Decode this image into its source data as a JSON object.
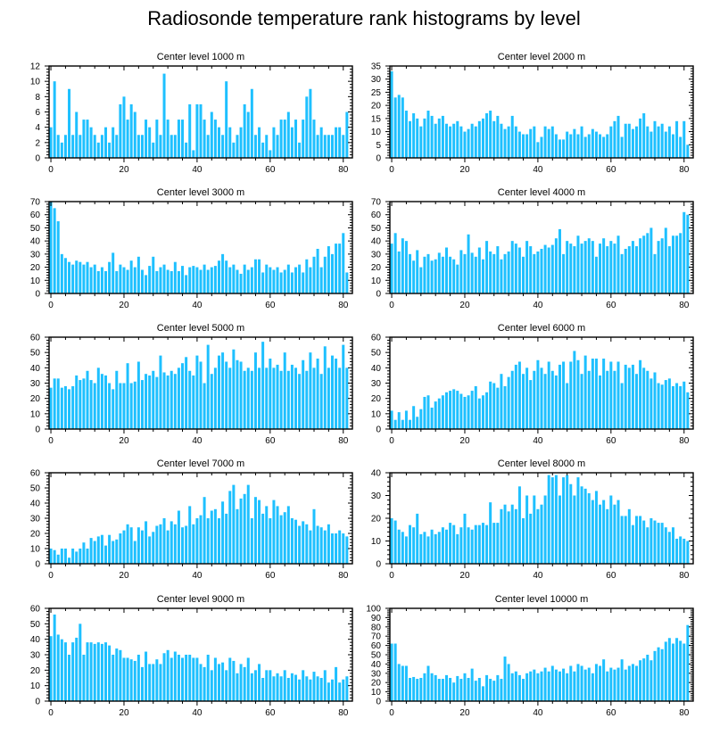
{
  "title": "Radiosonde temperature rank histograms by level",
  "colors": {
    "bar": "#1ec0ff",
    "frame": "#000000"
  },
  "chart_data": [
    {
      "type": "bar",
      "title": "Center level 1000 m",
      "xlim": [
        -0.5,
        82.5
      ],
      "xticks": [
        0,
        20,
        40,
        60,
        80
      ],
      "ylim": [
        0,
        12
      ],
      "yticks": [
        0,
        2,
        4,
        6,
        8,
        10,
        12
      ],
      "values": [
        4,
        10,
        3,
        2,
        3,
        9,
        3,
        6,
        3,
        5,
        5,
        4,
        3,
        2,
        3,
        4,
        2,
        4,
        3,
        7,
        8,
        5,
        7,
        6,
        3,
        3,
        5,
        4,
        2,
        5,
        3,
        11,
        5,
        3,
        3,
        5,
        5,
        2,
        7,
        1,
        7,
        7,
        5,
        3,
        6,
        5,
        4,
        3,
        10,
        4,
        2,
        3,
        4,
        7,
        6,
        9,
        3,
        4,
        2,
        3,
        1,
        4,
        3,
        5,
        5,
        6,
        4,
        5,
        2,
        5,
        8,
        9,
        5,
        3,
        4,
        3,
        3,
        3,
        4,
        4,
        3,
        6
      ]
    },
    {
      "type": "bar",
      "title": "Center level 2000 m",
      "xlim": [
        -0.5,
        82.5
      ],
      "xticks": [
        0,
        20,
        40,
        60,
        80
      ],
      "ylim": [
        0,
        35
      ],
      "yticks": [
        0,
        5,
        10,
        15,
        20,
        25,
        30,
        35
      ],
      "values": [
        33,
        23,
        24,
        23,
        18,
        14,
        17,
        15,
        12,
        15,
        18,
        16,
        13,
        15,
        16,
        13,
        12,
        13,
        14,
        12,
        10,
        11,
        13,
        12,
        14,
        15,
        17,
        18,
        14,
        16,
        13,
        11,
        12,
        16,
        12,
        10,
        9,
        9,
        11,
        12,
        6,
        8,
        12,
        11,
        12,
        9,
        7,
        7,
        10,
        9,
        11,
        9,
        12,
        8,
        9,
        11,
        10,
        9,
        8,
        9,
        12,
        14,
        16,
        8,
        13,
        13,
        11,
        12,
        15,
        17,
        12,
        10,
        14,
        12,
        13,
        10,
        12,
        9,
        14,
        8,
        14,
        5
      ]
    },
    {
      "type": "bar",
      "title": "Center level 3000 m",
      "xlim": [
        -0.5,
        82.5
      ],
      "xticks": [
        0,
        20,
        40,
        60,
        80
      ],
      "ylim": [
        0,
        70
      ],
      "yticks": [
        0,
        10,
        20,
        30,
        40,
        50,
        60,
        70
      ],
      "values": [
        70,
        65,
        55,
        30,
        27,
        24,
        22,
        25,
        24,
        22,
        24,
        20,
        22,
        17,
        20,
        17,
        24,
        31,
        17,
        22,
        20,
        18,
        25,
        20,
        28,
        18,
        14,
        21,
        28,
        17,
        20,
        22,
        18,
        17,
        24,
        17,
        21,
        14,
        20,
        21,
        20,
        18,
        22,
        18,
        20,
        21,
        25,
        30,
        25,
        20,
        22,
        18,
        15,
        22,
        18,
        20,
        26,
        26,
        16,
        22,
        20,
        18,
        20,
        16,
        18,
        22,
        16,
        20,
        22,
        16,
        26,
        20,
        28,
        34,
        20,
        28,
        36,
        30,
        38,
        38,
        46,
        16
      ]
    },
    {
      "type": "bar",
      "title": "Center level 4000 m",
      "xlim": [
        -0.5,
        82.5
      ],
      "xticks": [
        0,
        20,
        40,
        60,
        80
      ],
      "ylim": [
        0,
        70
      ],
      "yticks": [
        0,
        10,
        20,
        30,
        40,
        50,
        60,
        70
      ],
      "values": [
        38,
        46,
        32,
        42,
        40,
        30,
        25,
        33,
        20,
        28,
        30,
        25,
        26,
        31,
        28,
        35,
        28,
        26,
        22,
        33,
        30,
        45,
        31,
        28,
        35,
        26,
        40,
        32,
        30,
        36,
        26,
        30,
        32,
        40,
        38,
        35,
        28,
        40,
        36,
        30,
        32,
        34,
        37,
        35,
        37,
        42,
        49,
        30,
        40,
        38,
        36,
        44,
        38,
        40,
        42,
        40,
        28,
        38,
        42,
        36,
        40,
        38,
        44,
        30,
        34,
        36,
        40,
        36,
        42,
        44,
        46,
        50,
        30,
        40,
        42,
        50,
        36,
        44,
        44,
        46,
        62,
        60
      ]
    },
    {
      "type": "bar",
      "title": "Center level 5000 m",
      "xlim": [
        -0.5,
        82.5
      ],
      "xticks": [
        0,
        20,
        40,
        60,
        80
      ],
      "ylim": [
        0,
        60
      ],
      "yticks": [
        0,
        10,
        20,
        30,
        40,
        50,
        60
      ],
      "values": [
        27,
        33,
        33,
        27,
        28,
        26,
        28,
        35,
        32,
        33,
        38,
        32,
        30,
        40,
        36,
        35,
        30,
        26,
        38,
        30,
        30,
        43,
        30,
        31,
        44,
        32,
        36,
        35,
        38,
        34,
        48,
        37,
        35,
        38,
        36,
        40,
        43,
        47,
        38,
        35,
        48,
        44,
        30,
        55,
        36,
        40,
        48,
        50,
        44,
        40,
        52,
        45,
        44,
        38,
        40,
        38,
        50,
        40,
        57,
        40,
        46,
        40,
        42,
        38,
        50,
        38,
        42,
        40,
        36,
        45,
        38,
        50,
        40,
        46,
        36,
        54,
        40,
        48,
        46,
        40,
        55,
        40
      ]
    },
    {
      "type": "bar",
      "title": "Center level 6000 m",
      "xlim": [
        -0.5,
        82.5
      ],
      "xticks": [
        0,
        20,
        40,
        60,
        80
      ],
      "ylim": [
        0,
        60
      ],
      "yticks": [
        0,
        10,
        20,
        30,
        40,
        50,
        60
      ],
      "values": [
        12,
        6,
        11,
        6,
        12,
        6,
        15,
        8,
        13,
        21,
        22,
        14,
        18,
        20,
        22,
        24,
        25,
        26,
        25,
        23,
        21,
        22,
        25,
        28,
        20,
        22,
        24,
        31,
        30,
        27,
        36,
        28,
        34,
        38,
        42,
        44,
        36,
        40,
        32,
        38,
        45,
        40,
        36,
        44,
        38,
        35,
        42,
        44,
        30,
        44,
        51,
        45,
        36,
        48,
        38,
        46,
        46,
        35,
        46,
        38,
        44,
        38,
        44,
        30,
        42,
        40,
        42,
        36,
        45,
        40,
        38,
        33,
        37,
        30,
        29,
        32,
        33,
        28,
        30,
        28,
        31,
        24
      ]
    },
    {
      "type": "bar",
      "title": "Center level 7000 m",
      "xlim": [
        -0.5,
        82.5
      ],
      "xticks": [
        0,
        20,
        40,
        60,
        80
      ],
      "ylim": [
        0,
        60
      ],
      "yticks": [
        0,
        10,
        20,
        30,
        40,
        50,
        60
      ],
      "values": [
        10,
        9,
        6,
        10,
        10,
        4,
        10,
        8,
        10,
        14,
        10,
        17,
        15,
        18,
        19,
        12,
        19,
        15,
        16,
        20,
        22,
        26,
        24,
        15,
        24,
        22,
        28,
        18,
        21,
        25,
        26,
        30,
        22,
        28,
        26,
        35,
        24,
        25,
        38,
        26,
        30,
        32,
        44,
        30,
        35,
        36,
        30,
        41,
        33,
        48,
        52,
        36,
        43,
        46,
        52,
        30,
        44,
        42,
        33,
        38,
        30,
        42,
        38,
        32,
        34,
        38,
        30,
        29,
        25,
        28,
        26,
        22,
        36,
        25,
        24,
        22,
        26,
        20,
        20,
        22,
        20,
        18
      ]
    },
    {
      "type": "bar",
      "title": "Center level 8000 m",
      "xlim": [
        -0.5,
        82.5
      ],
      "xticks": [
        0,
        20,
        40,
        60,
        80
      ],
      "ylim": [
        0,
        40
      ],
      "yticks": [
        0,
        10,
        20,
        30,
        40
      ],
      "values": [
        20,
        19,
        15,
        14,
        12,
        17,
        16,
        22,
        13,
        14,
        12,
        15,
        13,
        14,
        16,
        15,
        18,
        17,
        13,
        16,
        22,
        16,
        15,
        17,
        17,
        18,
        17,
        27,
        18,
        18,
        24,
        26,
        23,
        26,
        24,
        34,
        20,
        30,
        22,
        30,
        24,
        26,
        30,
        39,
        38,
        39,
        30,
        38,
        39,
        35,
        30,
        38,
        34,
        33,
        31,
        28,
        32,
        26,
        28,
        24,
        30,
        26,
        28,
        21,
        21,
        24,
        17,
        21,
        21,
        19,
        16,
        20,
        19,
        18,
        18,
        16,
        14,
        16,
        11,
        12,
        11,
        10
      ]
    },
    {
      "type": "bar",
      "title": "Center level 9000 m",
      "xlim": [
        -0.5,
        82.5
      ],
      "xticks": [
        0,
        20,
        40,
        60,
        80
      ],
      "ylim": [
        0,
        60
      ],
      "yticks": [
        0,
        10,
        20,
        30,
        40,
        50,
        60
      ],
      "values": [
        42,
        56,
        43,
        40,
        38,
        30,
        38,
        41,
        50,
        30,
        38,
        38,
        37,
        38,
        37,
        38,
        36,
        30,
        34,
        33,
        28,
        28,
        27,
        26,
        30,
        22,
        32,
        24,
        24,
        27,
        24,
        31,
        33,
        28,
        32,
        30,
        28,
        30,
        30,
        28,
        28,
        24,
        22,
        30,
        20,
        28,
        24,
        25,
        20,
        28,
        26,
        18,
        24,
        22,
        28,
        18,
        20,
        24,
        15,
        20,
        20,
        16,
        18,
        16,
        20,
        15,
        18,
        17,
        14,
        20,
        16,
        14,
        19,
        16,
        15,
        20,
        12,
        14,
        22,
        12,
        14,
        16
      ]
    },
    {
      "type": "bar",
      "title": "Center level 10000 m",
      "xlim": [
        -0.5,
        82.5
      ],
      "xticks": [
        0,
        20,
        40,
        60,
        80
      ],
      "ylim": [
        0,
        100
      ],
      "yticks": [
        0,
        10,
        20,
        30,
        40,
        50,
        60,
        70,
        80,
        90,
        100
      ],
      "values": [
        62,
        62,
        40,
        38,
        38,
        25,
        26,
        24,
        25,
        30,
        38,
        30,
        28,
        24,
        24,
        28,
        25,
        20,
        27,
        24,
        30,
        25,
        35,
        22,
        25,
        16,
        28,
        24,
        22,
        28,
        24,
        48,
        40,
        30,
        32,
        28,
        24,
        30,
        32,
        34,
        30,
        32,
        36,
        32,
        38,
        34,
        32,
        35,
        30,
        38,
        32,
        40,
        38,
        34,
        36,
        30,
        40,
        38,
        45,
        32,
        36,
        34,
        36,
        45,
        34,
        38,
        40,
        38,
        44,
        46,
        50,
        44,
        54,
        58,
        56,
        64,
        68,
        62,
        68,
        65,
        62,
        82
      ]
    }
  ]
}
